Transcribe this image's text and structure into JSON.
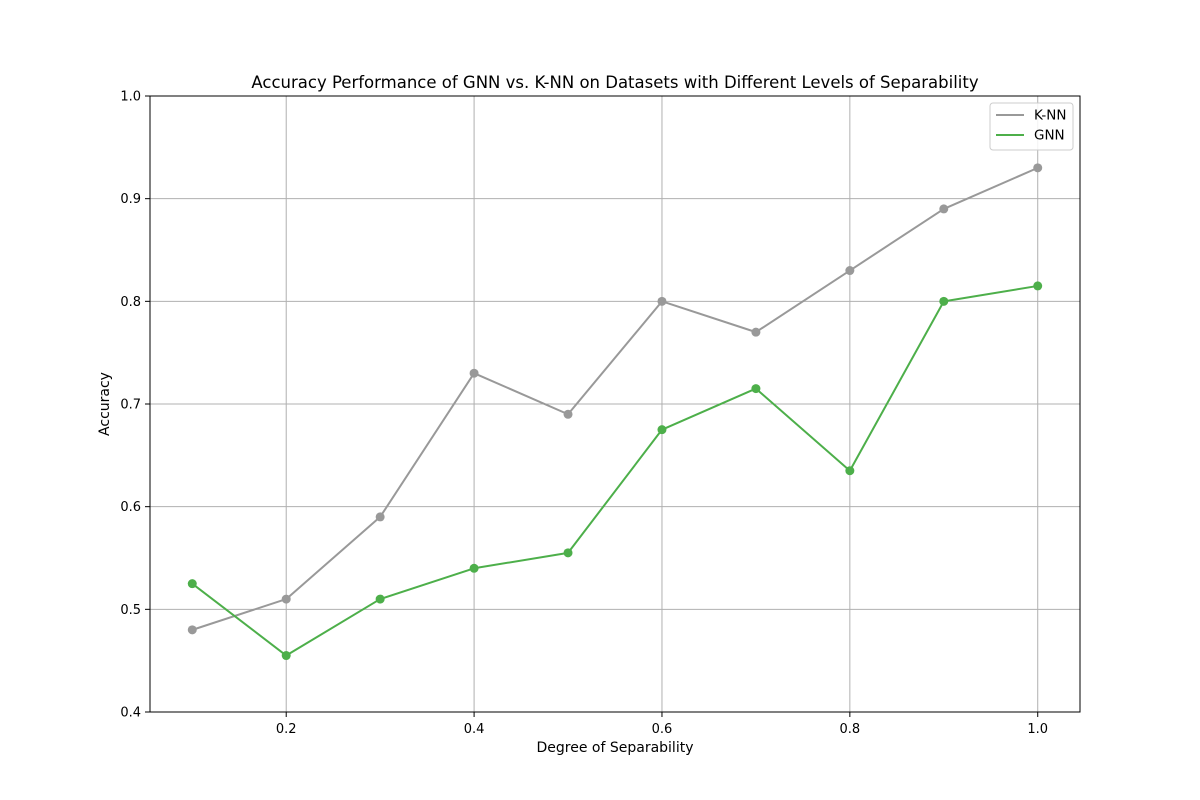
{
  "chart_data": {
    "type": "line",
    "title": "Accuracy Performance of GNN vs. K-NN on Datasets with Different Levels of Separability",
    "xlabel": "Degree of Separability",
    "ylabel": "Accuracy",
    "x": [
      0.1,
      0.2,
      0.3,
      0.4,
      0.5,
      0.6,
      0.7,
      0.8,
      0.9,
      1.0
    ],
    "xlim": [
      0.055,
      1.045
    ],
    "ylim": [
      0.4,
      1.0
    ],
    "xticks": [
      "0.2",
      "0.4",
      "0.6",
      "0.8",
      "1.0"
    ],
    "yticks": [
      "0.4",
      "0.5",
      "0.6",
      "0.7",
      "0.8",
      "0.9",
      "1.0"
    ],
    "grid": true,
    "legend_position": "top-right",
    "series": [
      {
        "name": "K-NN",
        "color": "#999999",
        "marker": "circle",
        "values": [
          0.48,
          0.51,
          0.59,
          0.73,
          0.69,
          0.8,
          0.77,
          0.83,
          0.89,
          0.93
        ]
      },
      {
        "name": "GNN",
        "color": "#4daf4a",
        "marker": "circle",
        "values": [
          0.525,
          0.455,
          0.51,
          0.54,
          0.555,
          0.675,
          0.715,
          0.635,
          0.8,
          0.815
        ]
      }
    ]
  }
}
